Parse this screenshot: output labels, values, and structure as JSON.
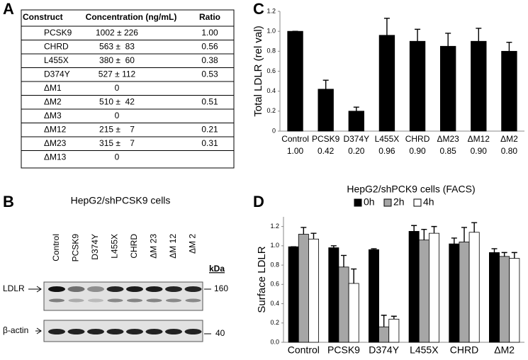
{
  "panel_labels": [
    "A",
    "B",
    "C",
    "D"
  ],
  "table": {
    "header": [
      "Construct",
      "Concentration  (ng/mL)",
      "Ratio"
    ],
    "rows": [
      [
        "PCSK9",
        "1002 ± 226",
        "1.00"
      ],
      [
        "CHRD",
        "563 ±  83",
        "0.56"
      ],
      [
        "L455X",
        "380 ±  60",
        "0.38"
      ],
      [
        "D374Y",
        "527 ± 112",
        "0.53"
      ],
      [
        "ΔM1",
        "0",
        ""
      ],
      [
        "ΔM2",
        "510 ±  42",
        "0.51"
      ],
      [
        "ΔM3",
        "0",
        ""
      ],
      [
        "ΔM12",
        "215 ±    7",
        "0.21"
      ],
      [
        "ΔM23",
        "315 ±    7",
        "0.31"
      ],
      [
        "ΔM13",
        "0",
        ""
      ]
    ]
  },
  "blot": {
    "title": "HepG2/shPCSK9 cells",
    "lanes": [
      "Control",
      "PCSK9",
      "D374Y",
      "L455X",
      "CHRD",
      "ΔM 23",
      "ΔM 12",
      "ΔM 2"
    ],
    "unit": "kDa",
    "rows": [
      {
        "label": "LDLR",
        "marker": "160"
      },
      {
        "label": "β-actin",
        "marker": "40"
      }
    ]
  },
  "chart_data": [
    {
      "type": "bar",
      "y_label": "Total LDLR (rel val)",
      "categories": [
        "Control",
        "PCSK9",
        "D374Y",
        "L455X",
        "CHRD",
        "ΔM23",
        "ΔM12",
        "ΔM2"
      ],
      "values": [
        1.0,
        0.42,
        0.2,
        0.96,
        0.9,
        0.85,
        0.9,
        0.8
      ],
      "value_labels": [
        "1.00",
        "0.42",
        "0.20",
        "0.96",
        "0.90",
        "0.85",
        "0.90",
        "0.80"
      ],
      "errors": [
        0,
        0.09,
        0.04,
        0.17,
        0.12,
        0.13,
        0.13,
        0.09
      ],
      "color": "#000000",
      "ylim": [
        0,
        1.2
      ],
      "yticks": [
        0,
        0.2,
        0.4,
        0.6,
        0.8,
        {
          "value": 1.0,
          "label": "1.0"
        },
        1.2
      ]
    },
    {
      "type": "bar",
      "title": "HepG2/shPCK9 cells  (FACS)",
      "y_label": "Surface LDLR",
      "categories": [
        "Control",
        "PCSK9",
        "D374Y",
        "L455X",
        "CHRD",
        "ΔM2"
      ],
      "series": [
        {
          "name": "0h",
          "color": "#000000",
          "values": [
            0.99,
            0.98,
            0.96,
            1.15,
            1.02,
            0.93
          ],
          "errors": [
            0,
            0.02,
            0.01,
            0.06,
            0.06,
            0.04
          ]
        },
        {
          "name": "2h",
          "color": "#a6a6a6",
          "values": [
            1.12,
            0.78,
            0.16,
            1.06,
            1.04,
            0.89
          ],
          "errors": [
            0.07,
            0.12,
            0.12,
            0.11,
            0.15,
            0.04
          ]
        },
        {
          "name": "4h",
          "color": "#ffffff",
          "values": [
            1.07,
            0.61,
            0.24,
            1.13,
            1.14,
            0.87
          ],
          "errors": [
            0.06,
            0.15,
            0.03,
            0.07,
            0.1,
            0.06
          ]
        }
      ],
      "ylim": [
        0,
        1.3
      ],
      "yticks": [
        {
          "value": 0,
          "label": "0.0"
        },
        0.2,
        0.4,
        0.6,
        0.8,
        {
          "value": 1.0,
          "label": "1.0"
        },
        1.2
      ],
      "legend": "top"
    }
  ]
}
